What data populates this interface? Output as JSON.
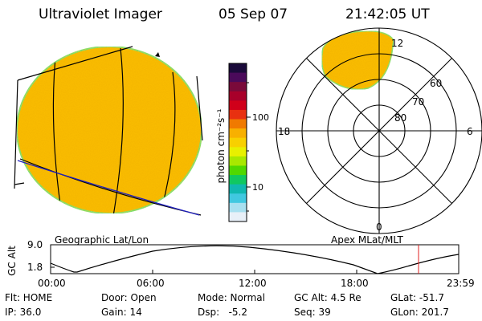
{
  "header": {
    "title": "Ultraviolet Imager",
    "date": "05 Sep 07",
    "time": "21:42:05 UT"
  },
  "left_panel": {
    "caption": "Geographic Lat/Lon"
  },
  "right_panel": {
    "caption": "Apex MLat/MLT",
    "mlt_labels": {
      "top": "12",
      "left": "18",
      "right": "6",
      "bottom": "0"
    },
    "lat_labels": [
      "60",
      "70",
      "80"
    ]
  },
  "colorbar": {
    "unit_label": "photon cm⁻²s⁻¹",
    "ticks": [
      "100",
      "10"
    ],
    "colors": [
      "#1a0a3a",
      "#4a0a5a",
      "#7a0a3a",
      "#a8002a",
      "#d0001a",
      "#e83010",
      "#f07a00",
      "#f8b000",
      "#f8d000",
      "#e8f000",
      "#a8e800",
      "#50d800",
      "#10c860",
      "#10b8b0",
      "#40c8e0",
      "#a8e0f0",
      "#e8f0f8"
    ]
  },
  "altitude_strip": {
    "ylabel": "GC Alt",
    "ymax": "9.0",
    "ymin": "1.8",
    "x_ticks": [
      "00:00",
      "06:00",
      "12:00",
      "18:00",
      "23:59"
    ],
    "current_time_marker": "21:42"
  },
  "info": {
    "flt": "Flt: HOME",
    "door": "Door: Open",
    "mode": "Mode: Normal",
    "gc_alt": "GC Alt: 4.5 Re",
    "glat": "GLat: -51.7",
    "ip": "IP: 36.0",
    "gain": "Gain: 14",
    "dsp": "Dsp:   -5.2",
    "seq": "Seq: 39",
    "glon": "GLon: 201.7"
  }
}
